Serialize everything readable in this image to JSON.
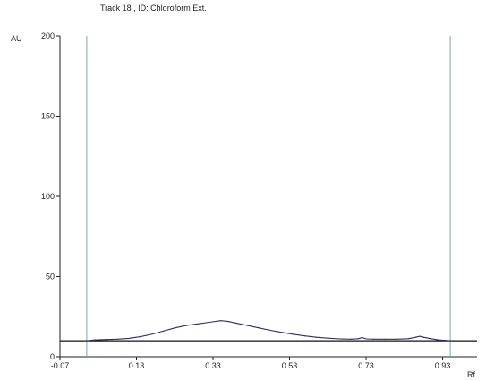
{
  "chart_data": {
    "type": "line",
    "title": "Track 18 , ID: Chloroform Ext.",
    "ylabel": "AU",
    "xlabel": "Rf",
    "xlim": [
      -0.07,
      1.02
    ],
    "ylim": [
      0,
      200
    ],
    "xticks": [
      "-0.07",
      "0.13",
      "0.33",
      "0.53",
      "0.73",
      "0.93"
    ],
    "yticks": [
      "0",
      "50",
      "100",
      "150",
      "200"
    ],
    "baseline": 10,
    "front_markers_rf": [
      0.0,
      0.95
    ],
    "series": [
      {
        "x": [
          0.0,
          0.02,
          0.05,
          0.08,
          0.11,
          0.14,
          0.17,
          0.2,
          0.23,
          0.26,
          0.29,
          0.32,
          0.35,
          0.37,
          0.39,
          0.42,
          0.45,
          0.48,
          0.51,
          0.54,
          0.57,
          0.6,
          0.63,
          0.66,
          0.69,
          0.71,
          0.72,
          0.73,
          0.75,
          0.78,
          0.81,
          0.84,
          0.86,
          0.87,
          0.88,
          0.9,
          0.92,
          0.95
        ],
        "y": [
          10,
          10.5,
          10.8,
          11,
          11.5,
          12.5,
          14,
          16,
          18,
          19.5,
          20.5,
          21.5,
          22.5,
          22,
          21,
          19.5,
          18,
          16.5,
          15.2,
          14,
          13,
          12.2,
          11.6,
          11.2,
          11,
          11.3,
          12,
          11.2,
          11,
          11,
          11,
          11.3,
          12.2,
          12.8,
          12.2,
          11.3,
          10.5,
          10
        ]
      }
    ],
    "colors": {
      "trace": "#2b2b6b",
      "baseline": "#111111",
      "markers": "#7fa6a6",
      "axis": "#222222"
    }
  }
}
